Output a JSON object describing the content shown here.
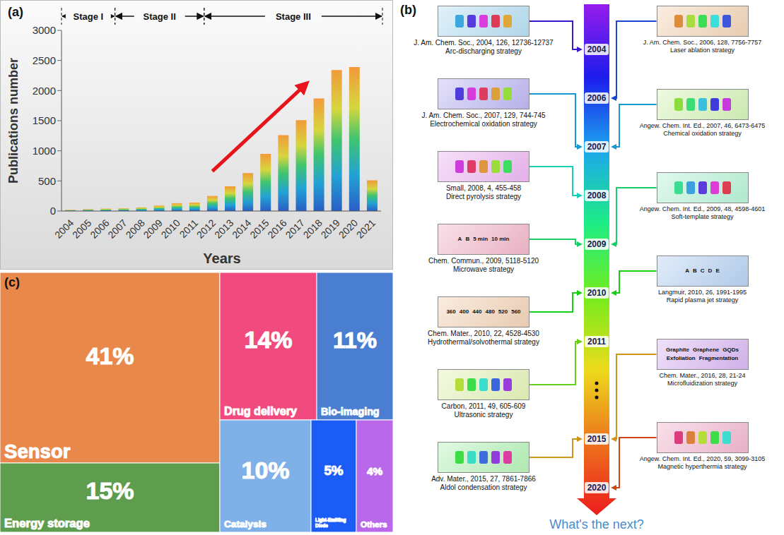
{
  "chart_data": [
    {
      "panel": "(a)",
      "type": "bar",
      "categories": [
        "2004",
        "2005",
        "2006",
        "2007",
        "2008",
        "2009",
        "2010",
        "2011",
        "2012",
        "2013",
        "2014",
        "2015",
        "2016",
        "2017",
        "2018",
        "2019",
        "2020",
        "2021"
      ],
      "values": [
        20,
        30,
        40,
        45,
        60,
        90,
        130,
        140,
        250,
        410,
        630,
        950,
        1260,
        1510,
        1870,
        2340,
        2390,
        510
      ],
      "x_label": "Years",
      "y_label": "Publications number",
      "ylim": [
        0,
        3000
      ],
      "yticks": [
        0,
        500,
        1000,
        1500,
        2000,
        2500,
        3000
      ],
      "grid": false,
      "annotations": [
        {
          "text": "Stage I",
          "from": "2004",
          "to": "2006"
        },
        {
          "text": "Stage II",
          "from": "2007",
          "to": "2011"
        },
        {
          "text": "Stage III",
          "from": "2012",
          "to": "2021"
        }
      ]
    },
    {
      "panel": "(c)",
      "type": "treemap",
      "categories": [
        "Sensor",
        "Energy storage",
        "Drug delivery",
        "Bio-imaging",
        "Catalysis",
        "Light-Emitting Diode",
        "Others"
      ],
      "values": [
        41,
        15,
        14,
        11,
        10,
        5,
        4
      ],
      "value_labels": [
        "41%",
        "15%",
        "14%",
        "11%",
        "10%",
        "5%",
        "4%"
      ],
      "colors": [
        "#e8884a",
        "#5e9c4e",
        "#f04a7e",
        "#4a7ed0",
        "#7fb0e8",
        "#1a5cf5",
        "#b868e8"
      ],
      "data_labels": true
    }
  ],
  "timeline": {
    "panel": "(b)",
    "years": [
      "2004",
      "2006",
      "2007",
      "2008",
      "2009",
      "2010",
      "2011",
      null,
      "2015",
      "2020"
    ],
    "caption": "What's the next?",
    "left": [
      {
        "year": "2004",
        "citation": "J. Am. Chem. Soc., 2004, 126, 12736-12737",
        "strategy": "Arc-discharging strategy"
      },
      {
        "year": "2007",
        "citation": "J. Am. Chem. Soc., 2007, 129, 744-745",
        "strategy": "Electrochemical oxidation strategy"
      },
      {
        "year": "2008",
        "citation": "Small, 2008, 4, 455-458",
        "strategy": "Direct pyrolysis strategy"
      },
      {
        "year": "2009",
        "citation": "Chem. Commun., 2009, 5118-5120",
        "strategy": "Microwave strategy",
        "image_text": [
          "A",
          "B",
          "5 min",
          "10 min"
        ]
      },
      {
        "year": "2010",
        "citation": "Chem. Mater., 2010, 22, 4528-4530",
        "strategy": "Hydrothermal/solvothermal strategy",
        "image_text": [
          "360",
          "400",
          "440",
          "480",
          "520",
          "560"
        ]
      },
      {
        "year": "2011",
        "citation": "Carbon, 2011, 49, 605-609",
        "strategy": "Ultrasonic strategy"
      },
      {
        "year": "2015",
        "citation": "Adv. Mater., 2015, 27, 7861-7866",
        "strategy": "Aldol condensation strategy"
      }
    ],
    "right": [
      {
        "year": "2006",
        "citation": "J. Am. Chem. Soc., 2006, 128, 7756-7757",
        "strategy": "Laser ablation strategy"
      },
      {
        "year": "2007",
        "citation": "Angew. Chem. Int. Ed., 2007, 46, 6473-6475",
        "strategy": "Chemical oxidation strategy"
      },
      {
        "year": "2009",
        "citation": "Angew. Chem. Int. Ed., 2009, 48, 4598-4601",
        "strategy": "Soft-template strategy"
      },
      {
        "year": "2010",
        "citation": "Langmuir, 2010, 26, 1991-1995",
        "strategy": "Rapid plasma jet strategy",
        "image_text": [
          "A",
          "B",
          "C",
          "D",
          "E"
        ]
      },
      {
        "year": "2015",
        "citation": "Chem. Mater., 2016, 28, 21-24",
        "strategy": "Microfluidization strategy",
        "image_text": [
          "Graphite",
          "Graphene",
          "GQDs",
          "Exfoliation",
          "Fragmentation"
        ]
      },
      {
        "year": "2020",
        "citation": "Angew. Chem. Int. Ed., 2020, 59, 3099-3105",
        "strategy": "Magnetic hyperthermia strategy"
      }
    ]
  }
}
